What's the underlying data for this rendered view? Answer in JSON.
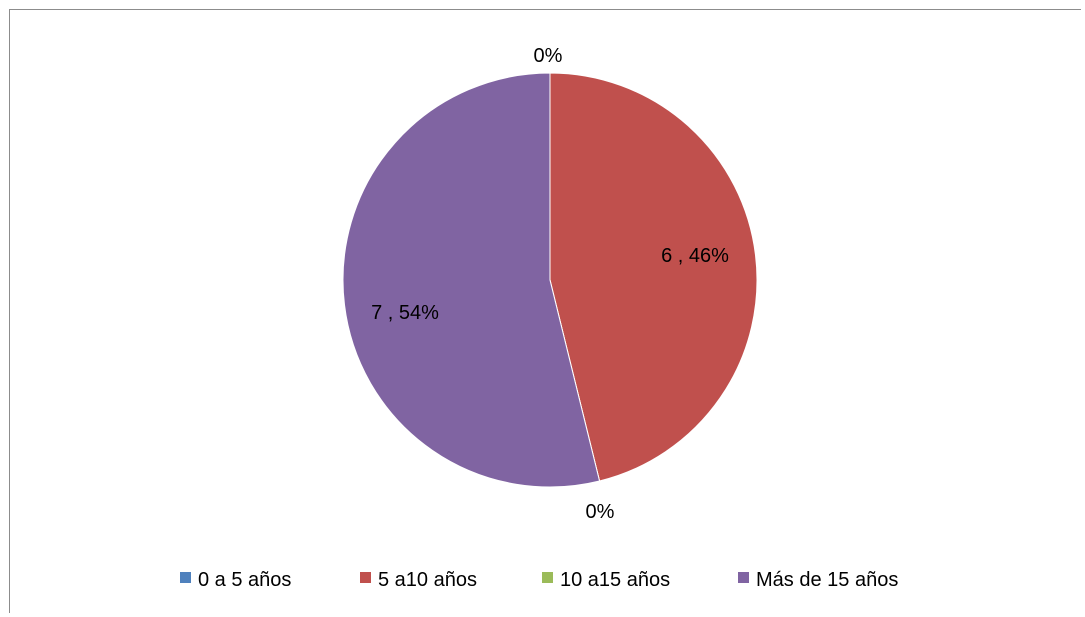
{
  "chart_data": {
    "type": "pie",
    "categories": [
      "0 a 5 años",
      "5 a10 años",
      "10 a15 años",
      "Más de 15 años"
    ],
    "values": [
      0,
      6,
      0,
      7
    ],
    "data_labels": [
      "0%",
      "6 , 46%",
      "0%",
      "7 , 54%"
    ],
    "colors": [
      "#4f81bd",
      "#c0504d",
      "#9bbb59",
      "#8064a2"
    ],
    "legend_position": "bottom",
    "start_angle": "12 o'clock, clockwise"
  }
}
